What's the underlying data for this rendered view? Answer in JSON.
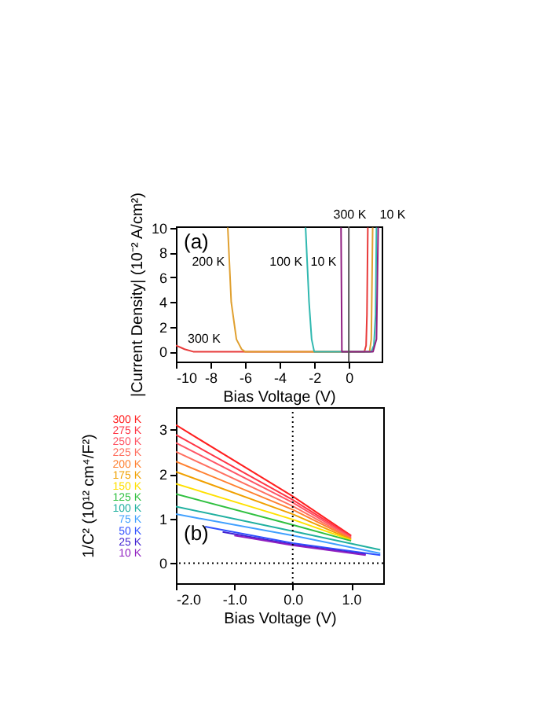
{
  "chart_data": [
    {
      "type": "line",
      "xlabel": "Bias Voltage (V)",
      "ylabel": "|Current Density| (10⁻² A/cm²)",
      "xlim": [
        -10,
        1.9
      ],
      "ylim": [
        -0.8,
        10.1
      ],
      "xticks": [
        -10,
        -8,
        -6,
        -4,
        -2,
        0
      ],
      "yticks": [
        0,
        2,
        4,
        6,
        8,
        10
      ],
      "series": [
        {
          "color": "#e83a3a",
          "x": [
            -10,
            -9.5,
            -9,
            0.9,
            1.0,
            1.05,
            1.1
          ],
          "values": [
            0.5,
            0.2,
            0,
            0,
            0.5,
            3,
            10
          ]
        },
        {
          "color": "#e0a030",
          "x": [
            -7,
            -6.8,
            -6.5,
            -6.2,
            -6,
            1.2,
            1.3,
            1.38
          ],
          "values": [
            10,
            4,
            1,
            0.2,
            0,
            0,
            1,
            10
          ]
        },
        {
          "color": "#30b8b0",
          "x": [
            -2.5,
            -2.3,
            -2.15,
            -2,
            1.3,
            1.45,
            1.55,
            1.6
          ],
          "values": [
            10,
            4,
            1,
            0,
            0,
            0.5,
            3,
            10
          ]
        },
        {
          "color": "#902080",
          "x": [
            -0.45,
            -0.4,
            1.4,
            1.6,
            1.7
          ],
          "values": [
            10,
            0,
            0,
            1,
            10
          ]
        }
      ],
      "ref_lines": [
        {
          "axis": "x",
          "value": 0,
          "color": "#555555"
        }
      ],
      "annotations": [
        "(a)",
        {
          "text": "300 K",
          "x": -9.5,
          "y": 0.2
        },
        {
          "text": "200 K",
          "x": -6.9,
          "y": 7.2
        },
        {
          "text": "100 K",
          "x": -2.41,
          "y": 7.2
        },
        {
          "text": "10 K",
          "x": -0.44,
          "y": 7.2
        },
        {
          "text": "300 K",
          "x": 1.1,
          "y": 10
        },
        {
          "text": "10 K",
          "x": 1.7,
          "y": 10
        }
      ],
      "marker": "none",
      "legend": false,
      "grid": false
    },
    {
      "type": "line",
      "xlabel": "Bias Voltage (V)",
      "ylabel": "1/C² (10¹² cm⁴/F²)",
      "xlim": [
        -2.0,
        1.55
      ],
      "ylim": [
        -0.45,
        3.5
      ],
      "xticks": [
        {
          "value": -2,
          "label": "-2.0"
        },
        {
          "value": -1,
          "label": "-1.0"
        },
        {
          "value": 0,
          "label": "0.0"
        },
        {
          "value": 1,
          "label": "1.0"
        }
      ],
      "yticks": [
        0,
        1,
        2,
        3
      ],
      "series": [
        {
          "name": "300 K",
          "color": "#ff2020",
          "x": [
            -2,
            0,
            1
          ],
          "values": [
            3.1,
            1.5,
            0.62
          ]
        },
        {
          "name": "275 K",
          "color": "#ff3545",
          "x": [
            -2,
            0,
            1
          ],
          "values": [
            2.88,
            1.42,
            0.6
          ]
        },
        {
          "name": "250 K",
          "color": "#ff5565",
          "x": [
            -2,
            0,
            1
          ],
          "values": [
            2.7,
            1.36,
            0.58
          ]
        },
        {
          "name": "225 K",
          "color": "#ff7060",
          "x": [
            -2,
            0,
            1
          ],
          "values": [
            2.5,
            1.28,
            0.56
          ]
        },
        {
          "name": "200 K",
          "color": "#ff8030",
          "x": [
            -2,
            0,
            1
          ],
          "values": [
            2.28,
            1.2,
            0.55
          ]
        },
        {
          "name": "175 K",
          "color": "#f0a000",
          "x": [
            -2,
            0,
            1
          ],
          "values": [
            2.05,
            1.1,
            0.53
          ]
        },
        {
          "name": "150 K",
          "color": "#ffe000",
          "x": [
            -2,
            0,
            1
          ],
          "values": [
            1.78,
            0.98,
            0.52
          ]
        },
        {
          "name": "125 K",
          "color": "#30c040",
          "x": [
            -2,
            0,
            1
          ],
          "values": [
            1.55,
            0.86,
            0.5
          ]
        },
        {
          "name": "100 K",
          "color": "#20b0a0",
          "x": [
            -2,
            0,
            1.5
          ],
          "values": [
            1.27,
            0.72,
            0.3
          ]
        },
        {
          "name": "75 K",
          "color": "#40a0ff",
          "x": [
            -2,
            0,
            1.5
          ],
          "values": [
            1.1,
            0.62,
            0.22
          ]
        },
        {
          "name": "50 K",
          "color": "#3050ff",
          "x": [
            -1.5,
            0,
            1.5
          ],
          "values": [
            0.82,
            0.45,
            0.18
          ]
        },
        {
          "name": "25 K",
          "color": "#4020d0",
          "x": [
            -1.2,
            0,
            1.25
          ],
          "values": [
            0.7,
            0.42,
            0.2
          ]
        },
        {
          "name": "10 K",
          "color": "#9020c0",
          "x": [
            -1.0,
            0,
            1.25
          ],
          "values": [
            0.62,
            0.4,
            0.18
          ]
        }
      ],
      "ref_lines": [
        {
          "axis": "x",
          "value": 0,
          "color": "#000000",
          "line_style": "dotted"
        },
        {
          "axis": "y",
          "value": 0,
          "color": "#000000",
          "line_style": "dotted"
        }
      ],
      "annotations": [
        "(b)"
      ],
      "marker": "none",
      "legend": "left",
      "grid": false
    }
  ]
}
